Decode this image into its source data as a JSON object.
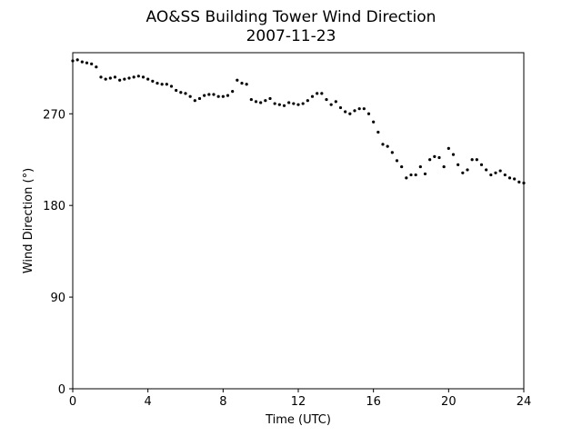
{
  "chart_data": {
    "type": "scatter",
    "title": "AO&SS Building Tower Wind Direction",
    "subtitle": "2007-11-23",
    "xlabel": "Time (UTC)",
    "ylabel": "Wind Direction (°)",
    "xlim": [
      0,
      24
    ],
    "ylim": [
      0,
      330
    ],
    "xticks": [
      0,
      4,
      8,
      12,
      16,
      20,
      24
    ],
    "yticks": [
      0,
      90,
      180,
      270
    ],
    "grid": false,
    "marker_color": "#000000",
    "series": [
      {
        "x": [
          0.0,
          0.25,
          0.5,
          0.75,
          1.0,
          1.25,
          1.5,
          1.75,
          2.0,
          2.25,
          2.5,
          2.75,
          3.0,
          3.25,
          3.5,
          3.75,
          4.0,
          4.25,
          4.5,
          4.75,
          5.0,
          5.25,
          5.5,
          5.75,
          6.0,
          6.25,
          6.5,
          6.75,
          7.0,
          7.25,
          7.5,
          7.75,
          8.0,
          8.25,
          8.5,
          8.75,
          9.0,
          9.25,
          9.5,
          9.75,
          10.0,
          10.25,
          10.5,
          10.75,
          11.0,
          11.25,
          11.5,
          11.75,
          12.0,
          12.25,
          12.5,
          12.75,
          13.0,
          13.25,
          13.5,
          13.75,
          14.0,
          14.25,
          14.5,
          14.75,
          15.0,
          15.25,
          15.5,
          15.75,
          16.0,
          16.25,
          16.5,
          16.75,
          17.0,
          17.25,
          17.5,
          17.75,
          18.0,
          18.25,
          18.5,
          18.75,
          19.0,
          19.25,
          19.5,
          19.75,
          20.0,
          20.25,
          20.5,
          20.75,
          21.0,
          21.25,
          21.5,
          21.75,
          22.0,
          22.25,
          22.5,
          22.75,
          23.0,
          23.25,
          23.5,
          23.75,
          24.0
        ],
        "y": [
          322,
          323,
          321,
          320,
          319,
          316,
          306,
          304,
          305,
          306,
          303,
          304,
          305,
          306,
          307,
          306,
          304,
          302,
          300,
          299,
          299,
          297,
          293,
          291,
          290,
          287,
          283,
          285,
          288,
          289,
          289,
          287,
          287,
          288,
          292,
          303,
          300,
          299,
          284,
          282,
          281,
          283,
          285,
          280,
          279,
          278,
          281,
          280,
          279,
          280,
          283,
          287,
          290,
          290,
          284,
          279,
          282,
          276,
          272,
          270,
          273,
          275,
          275,
          270,
          262,
          252,
          240,
          238,
          232,
          224,
          218,
          207,
          210,
          210,
          218,
          211,
          225,
          228,
          227,
          218,
          236,
          230,
          220,
          212,
          215,
          225,
          225,
          220,
          215,
          210,
          212,
          214,
          210,
          207,
          206,
          203,
          202
        ]
      }
    ]
  }
}
